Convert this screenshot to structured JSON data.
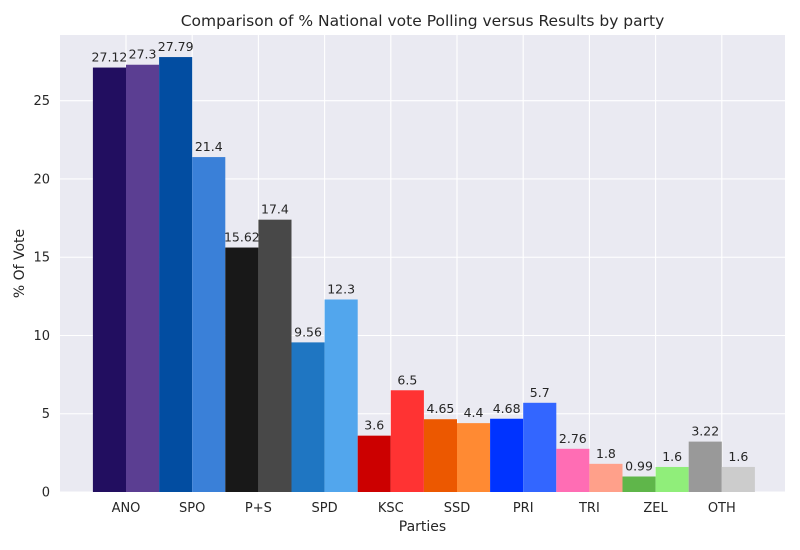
{
  "chart_data": {
    "type": "bar",
    "title": "Comparison of % National vote Polling versus Results by party",
    "xlabel": "Parties",
    "ylabel": "% Of Vote",
    "ylim": [
      0,
      29.2
    ],
    "yticks": [
      0,
      5,
      10,
      15,
      20,
      25
    ],
    "grid": true,
    "categories": [
      "ANO",
      "SPO",
      "P+S",
      "SPD",
      "KSC",
      "SSD",
      "PRI",
      "TRI",
      "ZEL",
      "OTH"
    ],
    "bars": [
      {
        "category": "ANO",
        "value": 27.12,
        "label": "27.12",
        "color": "#220e60"
      },
      {
        "category": "ANO",
        "value": 27.3,
        "label": "27.3",
        "color": "#5b3e92"
      },
      {
        "category": "SPO",
        "value": 27.79,
        "label": "27.79",
        "color": "#024da1"
      },
      {
        "category": "SPO",
        "value": 21.4,
        "label": "21.4",
        "color": "#3a80d8"
      },
      {
        "category": "P+S",
        "value": 15.62,
        "label": "15.62",
        "color": "#181818"
      },
      {
        "category": "P+S",
        "value": 17.4,
        "label": "17.4",
        "color": "#484848"
      },
      {
        "category": "SPD",
        "value": 9.56,
        "label": "9.56",
        "color": "#1f76c2"
      },
      {
        "category": "SPD",
        "value": 12.3,
        "label": "12.3",
        "color": "#52a6ed"
      },
      {
        "category": "KSC",
        "value": 3.6,
        "label": "3.6",
        "color": "#cc0000"
      },
      {
        "category": "KSC",
        "value": 6.5,
        "label": "6.5",
        "color": "#ff3333"
      },
      {
        "category": "SSD",
        "value": 4.65,
        "label": "4.65",
        "color": "#ec5800"
      },
      {
        "category": "SSD",
        "value": 4.4,
        "label": "4.4",
        "color": "#ff8a33"
      },
      {
        "category": "PRI",
        "value": 4.68,
        "label": "4.68",
        "color": "#0033ff"
      },
      {
        "category": "PRI",
        "value": 5.7,
        "label": "5.7",
        "color": "#3366ff"
      },
      {
        "category": "TRI",
        "value": 2.76,
        "label": "2.76",
        "color": "#ff6db4"
      },
      {
        "category": "TRI",
        "value": 1.8,
        "label": "1.8",
        "color": "#ffa08a"
      },
      {
        "category": "ZEL",
        "value": 0.99,
        "label": "0.99",
        "color": "#5fb64a"
      },
      {
        "category": "ZEL",
        "value": 1.6,
        "label": "1.6",
        "color": "#90ee7a"
      },
      {
        "category": "OTH",
        "value": 3.22,
        "label": "3.22",
        "color": "#999999"
      },
      {
        "category": "OTH",
        "value": 1.6,
        "label": "1.6",
        "color": "#cccccc"
      }
    ],
    "colors": {
      "plot_background": "#eaeaf2",
      "gridline": "#ffffff",
      "text": "#262626"
    }
  }
}
